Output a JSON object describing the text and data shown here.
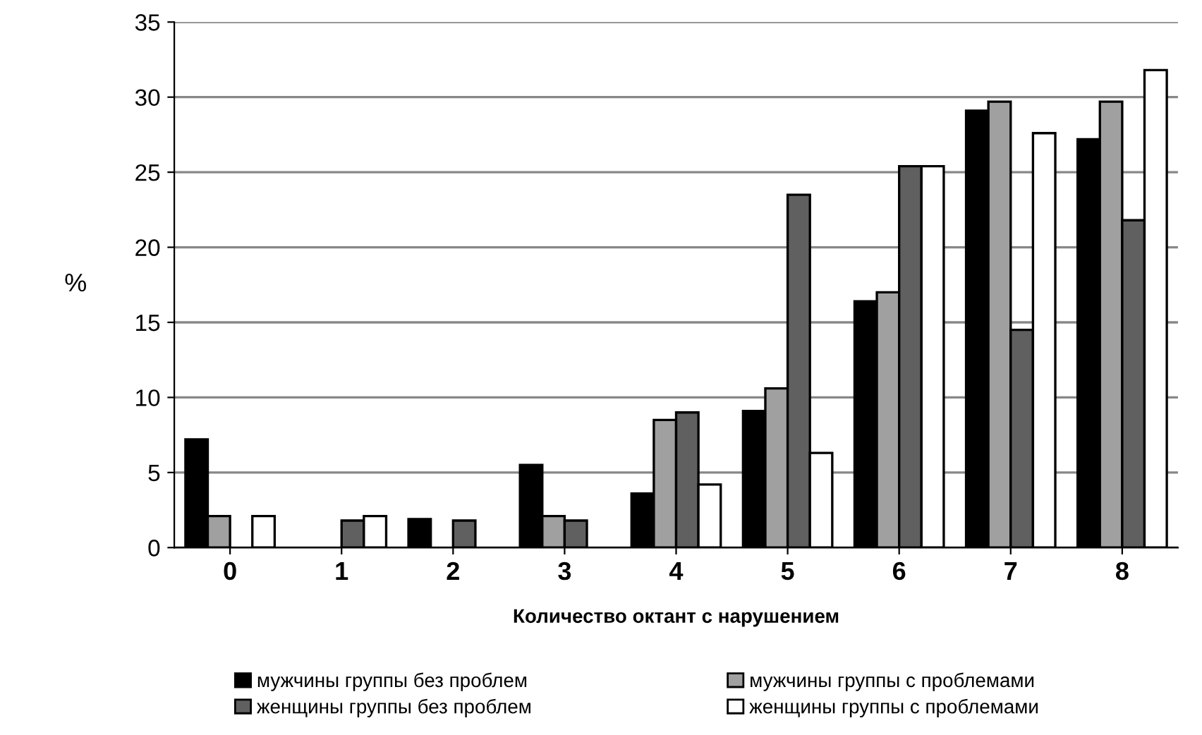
{
  "chart_data": {
    "type": "bar",
    "xlabel": "Количество октант с нарушением",
    "ylabel": "%",
    "categories": [
      "0",
      "1",
      "2",
      "3",
      "4",
      "5",
      "6",
      "7",
      "8"
    ],
    "series": [
      {
        "name": "мужчины группы без проблем",
        "color": "#000000",
        "values": [
          7.2,
          0,
          1.9,
          5.5,
          3.6,
          9.1,
          16.4,
          29.1,
          27.2
        ]
      },
      {
        "name": "мужчины группы с проблемами",
        "color": "#a0a0a0",
        "values": [
          2.1,
          0,
          0,
          2.1,
          8.5,
          10.6,
          17.0,
          29.7,
          29.7
        ]
      },
      {
        "name": "женщины группы без проблем",
        "color": "#606060",
        "values": [
          0,
          1.8,
          1.8,
          1.8,
          9.0,
          23.5,
          25.4,
          14.5,
          21.8
        ]
      },
      {
        "name": "женщины группы с проблемами",
        "color": "#ffffff",
        "values": [
          2.1,
          2.1,
          0,
          0,
          4.2,
          6.3,
          25.4,
          27.6,
          31.8
        ]
      }
    ],
    "ylim": [
      0,
      35
    ],
    "yticks": [
      0,
      5,
      10,
      15,
      20,
      25,
      30,
      35
    ],
    "grid": "y",
    "legend": "bottom"
  }
}
